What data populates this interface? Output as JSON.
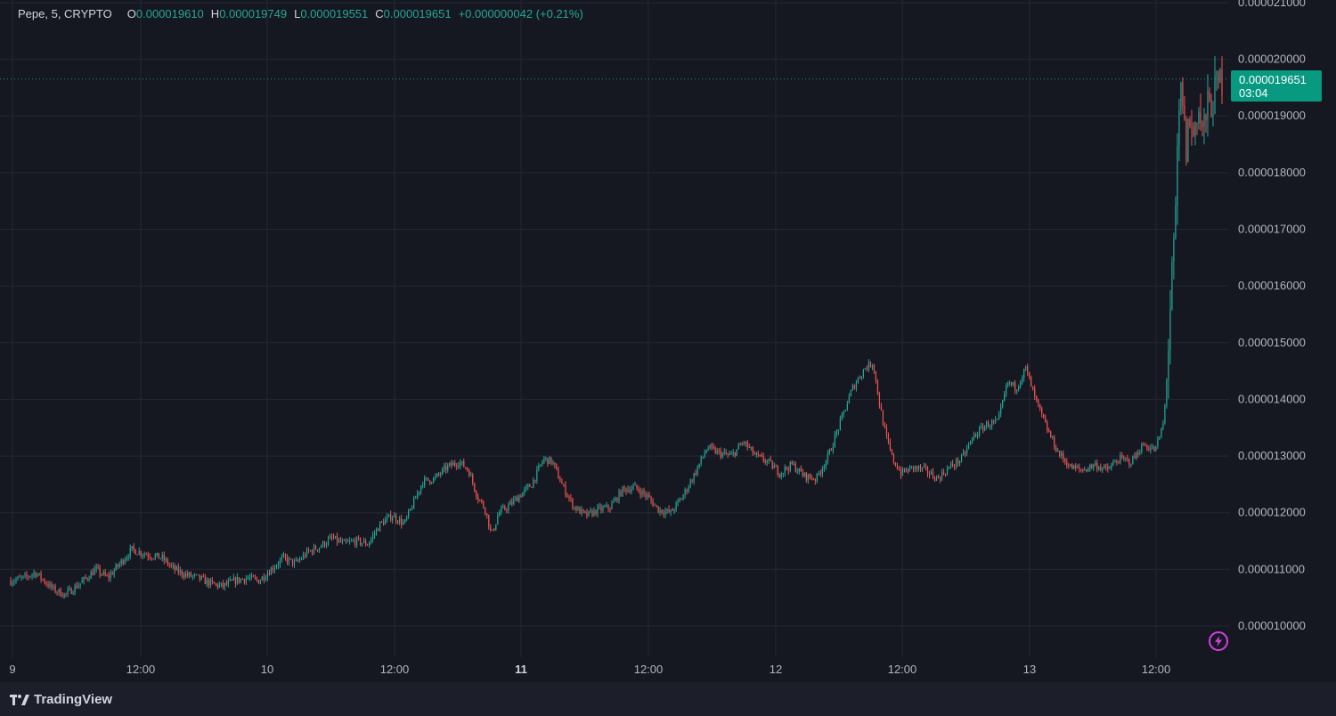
{
  "legend": {
    "symbol": "Pepe, 5, CRYPTO",
    "open_key": "O",
    "open": "0.000019610",
    "high_key": "H",
    "high": "0.000019749",
    "low_key": "L",
    "low": "0.000019551",
    "close_key": "C",
    "close": "0.000019651",
    "change": "+0.000000042 (+0.21%)"
  },
  "last_price": {
    "value": "0.000019651",
    "countdown": "03:04"
  },
  "branding": {
    "name": "TradingView"
  },
  "icons": {
    "logo": "tradingview-logo-icon",
    "bolt": "lightning-bolt-icon"
  },
  "colors": {
    "up": "#26a69a",
    "down": "#ef5350",
    "background": "#151821",
    "price_badge": "#089981",
    "bolt": "#d63ee0"
  },
  "chart_data": {
    "type": "candlestick",
    "interval": "5",
    "y_axis": {
      "ticks": [
        "0.000010000",
        "0.000011000",
        "0.000012000",
        "0.000013000",
        "0.000014000",
        "0.000015000",
        "0.000016000",
        "0.000017000",
        "0.000018000",
        "0.000019000",
        "0.000020000",
        "0.000021000"
      ],
      "range": [
        9.4e-06,
        2.11e-05
      ]
    },
    "x_axis": {
      "ticks": [
        {
          "label": "9",
          "bold": false
        },
        {
          "label": "12:00",
          "bold": false
        },
        {
          "label": "10",
          "bold": false
        },
        {
          "label": "12:00",
          "bold": false
        },
        {
          "label": "11",
          "bold": true
        },
        {
          "label": "12:00",
          "bold": false
        },
        {
          "label": "12",
          "bold": false
        },
        {
          "label": "12:00",
          "bold": false
        },
        {
          "label": "13",
          "bold": false
        },
        {
          "label": "12:00",
          "bold": false
        }
      ]
    },
    "price_path": [
      [
        0.0,
        10.8
      ],
      [
        0.012,
        10.85
      ],
      [
        0.02,
        10.95
      ],
      [
        0.03,
        10.75
      ],
      [
        0.035,
        10.65
      ],
      [
        0.045,
        10.55
      ],
      [
        0.06,
        10.8
      ],
      [
        0.07,
        11.0
      ],
      [
        0.08,
        10.85
      ],
      [
        0.09,
        11.1
      ],
      [
        0.1,
        11.35
      ],
      [
        0.107,
        11.3
      ],
      [
        0.115,
        11.25
      ],
      [
        0.125,
        11.2
      ],
      [
        0.135,
        11.0
      ],
      [
        0.145,
        10.9
      ],
      [
        0.155,
        10.85
      ],
      [
        0.165,
        10.75
      ],
      [
        0.175,
        10.7
      ],
      [
        0.185,
        10.8
      ],
      [
        0.195,
        10.85
      ],
      [
        0.205,
        10.8
      ],
      [
        0.215,
        11.0
      ],
      [
        0.225,
        11.2
      ],
      [
        0.235,
        11.1
      ],
      [
        0.245,
        11.3
      ],
      [
        0.255,
        11.4
      ],
      [
        0.265,
        11.55
      ],
      [
        0.275,
        11.45
      ],
      [
        0.285,
        11.5
      ],
      [
        0.295,
        11.45
      ],
      [
        0.305,
        11.8
      ],
      [
        0.315,
        11.95
      ],
      [
        0.325,
        11.8
      ],
      [
        0.335,
        12.3
      ],
      [
        0.34,
        12.55
      ],
      [
        0.35,
        12.6
      ],
      [
        0.36,
        12.8
      ],
      [
        0.37,
        12.9
      ],
      [
        0.378,
        12.75
      ],
      [
        0.385,
        12.3
      ],
      [
        0.392,
        12.05
      ],
      [
        0.397,
        11.6
      ],
      [
        0.403,
        12.0
      ],
      [
        0.41,
        12.1
      ],
      [
        0.42,
        12.3
      ],
      [
        0.43,
        12.5
      ],
      [
        0.44,
        12.95
      ],
      [
        0.447,
        12.9
      ],
      [
        0.455,
        12.5
      ],
      [
        0.465,
        12.1
      ],
      [
        0.475,
        11.95
      ],
      [
        0.485,
        12.05
      ],
      [
        0.495,
        12.1
      ],
      [
        0.505,
        12.4
      ],
      [
        0.515,
        12.45
      ],
      [
        0.525,
        12.3
      ],
      [
        0.535,
        12.05
      ],
      [
        0.545,
        12.0
      ],
      [
        0.555,
        12.3
      ],
      [
        0.565,
        12.7
      ],
      [
        0.575,
        13.15
      ],
      [
        0.585,
        13.05
      ],
      [
        0.595,
        13.0
      ],
      [
        0.605,
        13.25
      ],
      [
        0.615,
        13.0
      ],
      [
        0.625,
        12.9
      ],
      [
        0.635,
        12.7
      ],
      [
        0.645,
        12.85
      ],
      [
        0.655,
        12.65
      ],
      [
        0.665,
        12.6
      ],
      [
        0.675,
        13.0
      ],
      [
        0.685,
        13.6
      ],
      [
        0.695,
        14.2
      ],
      [
        0.705,
        14.55
      ],
      [
        0.712,
        14.65
      ],
      [
        0.717,
        13.95
      ],
      [
        0.722,
        13.4
      ],
      [
        0.728,
        12.95
      ],
      [
        0.735,
        12.7
      ],
      [
        0.745,
        12.8
      ],
      [
        0.755,
        12.75
      ],
      [
        0.765,
        12.6
      ],
      [
        0.775,
        12.8
      ],
      [
        0.785,
        12.95
      ],
      [
        0.795,
        13.35
      ],
      [
        0.805,
        13.55
      ],
      [
        0.815,
        13.6
      ],
      [
        0.823,
        14.3
      ],
      [
        0.83,
        14.2
      ],
      [
        0.838,
        14.55
      ],
      [
        0.845,
        14.05
      ],
      [
        0.855,
        13.5
      ],
      [
        0.865,
        13.05
      ],
      [
        0.875,
        12.8
      ],
      [
        0.885,
        12.75
      ],
      [
        0.895,
        12.85
      ],
      [
        0.905,
        12.75
      ],
      [
        0.915,
        12.95
      ],
      [
        0.925,
        12.9
      ],
      [
        0.935,
        13.2
      ],
      [
        0.945,
        13.1
      ],
      [
        0.952,
        13.6
      ],
      [
        0.955,
        14.6
      ],
      [
        0.958,
        15.9
      ],
      [
        0.961,
        16.8
      ],
      [
        0.964,
        18.8
      ],
      [
        0.967,
        19.6
      ],
      [
        0.97,
        18.3
      ],
      [
        0.973,
        19.0
      ],
      [
        0.976,
        18.6
      ],
      [
        0.98,
        19.2
      ],
      [
        0.984,
        18.7
      ],
      [
        0.988,
        19.1
      ],
      [
        0.992,
        19.3
      ],
      [
        0.996,
        19.5
      ],
      [
        1.0,
        19.65
      ]
    ]
  }
}
